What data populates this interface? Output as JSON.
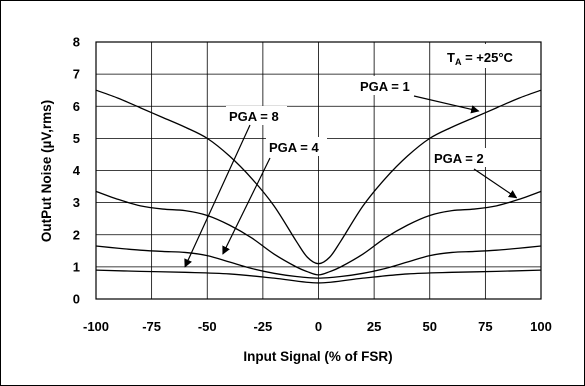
{
  "chart_data": {
    "type": "line",
    "xlabel": "Input Signal (% of FSR)",
    "ylabel": "OutPut Noise (µV,rms)",
    "xlim": [
      -100,
      100
    ],
    "ylim": [
      0,
      8
    ],
    "x_ticks": [
      "-100",
      "-75",
      "-50",
      "-25",
      "0",
      "25",
      "50",
      "75",
      "100"
    ],
    "y_ticks": [
      "0",
      "1",
      "2",
      "3",
      "4",
      "5",
      "6",
      "7",
      "8"
    ],
    "grid": true,
    "condition_label": {
      "main": "T",
      "sub": "A",
      "rest": " = +25°C"
    },
    "series": [
      {
        "name": "PGA = 1",
        "x": [
          -100,
          -90,
          -80,
          -70,
          -60,
          -50,
          -40,
          -30,
          -20,
          -10,
          -5,
          0,
          5,
          10,
          20,
          30,
          40,
          50,
          60,
          70,
          80,
          90,
          100
        ],
        "y": [
          6.5,
          6.25,
          5.95,
          5.65,
          5.35,
          5.0,
          4.45,
          3.75,
          2.9,
          1.8,
          1.3,
          1.1,
          1.3,
          1.8,
          2.9,
          3.75,
          4.45,
          5.0,
          5.35,
          5.65,
          5.95,
          6.25,
          6.5
        ]
      },
      {
        "name": "PGA = 2",
        "x": [
          -100,
          -90,
          -80,
          -70,
          -60,
          -50,
          -40,
          -30,
          -20,
          -10,
          -5,
          0,
          5,
          10,
          20,
          30,
          40,
          50,
          60,
          70,
          80,
          90,
          100
        ],
        "y": [
          3.35,
          3.1,
          2.9,
          2.8,
          2.75,
          2.6,
          2.3,
          1.9,
          1.4,
          1.0,
          0.85,
          0.75,
          0.85,
          1.0,
          1.4,
          1.9,
          2.3,
          2.6,
          2.75,
          2.8,
          2.9,
          3.1,
          3.35
        ]
      },
      {
        "name": "PGA = 4",
        "x": [
          -100,
          -90,
          -80,
          -70,
          -60,
          -50,
          -40,
          -30,
          -20,
          -10,
          0,
          10,
          20,
          30,
          40,
          50,
          60,
          70,
          80,
          90,
          100
        ],
        "y": [
          1.65,
          1.58,
          1.52,
          1.48,
          1.45,
          1.35,
          1.15,
          0.95,
          0.8,
          0.7,
          0.65,
          0.7,
          0.8,
          0.95,
          1.15,
          1.35,
          1.45,
          1.48,
          1.52,
          1.58,
          1.65
        ]
      },
      {
        "name": "PGA = 8",
        "x": [
          -100,
          -80,
          -60,
          -40,
          -20,
          0,
          20,
          40,
          60,
          80,
          100
        ],
        "y": [
          0.9,
          0.86,
          0.83,
          0.78,
          0.65,
          0.5,
          0.65,
          0.78,
          0.83,
          0.86,
          0.9
        ]
      }
    ],
    "annotations": [
      {
        "text": "PGA = 1",
        "arrow_to": [
          72,
          5.85
        ]
      },
      {
        "text": "PGA = 2",
        "arrow_to": [
          89,
          3.15
        ]
      },
      {
        "text": "PGA = 4",
        "arrow_to": [
          -43,
          1.4
        ]
      },
      {
        "text": "PGA = 8",
        "arrow_to": [
          -60,
          1.0
        ]
      }
    ]
  }
}
